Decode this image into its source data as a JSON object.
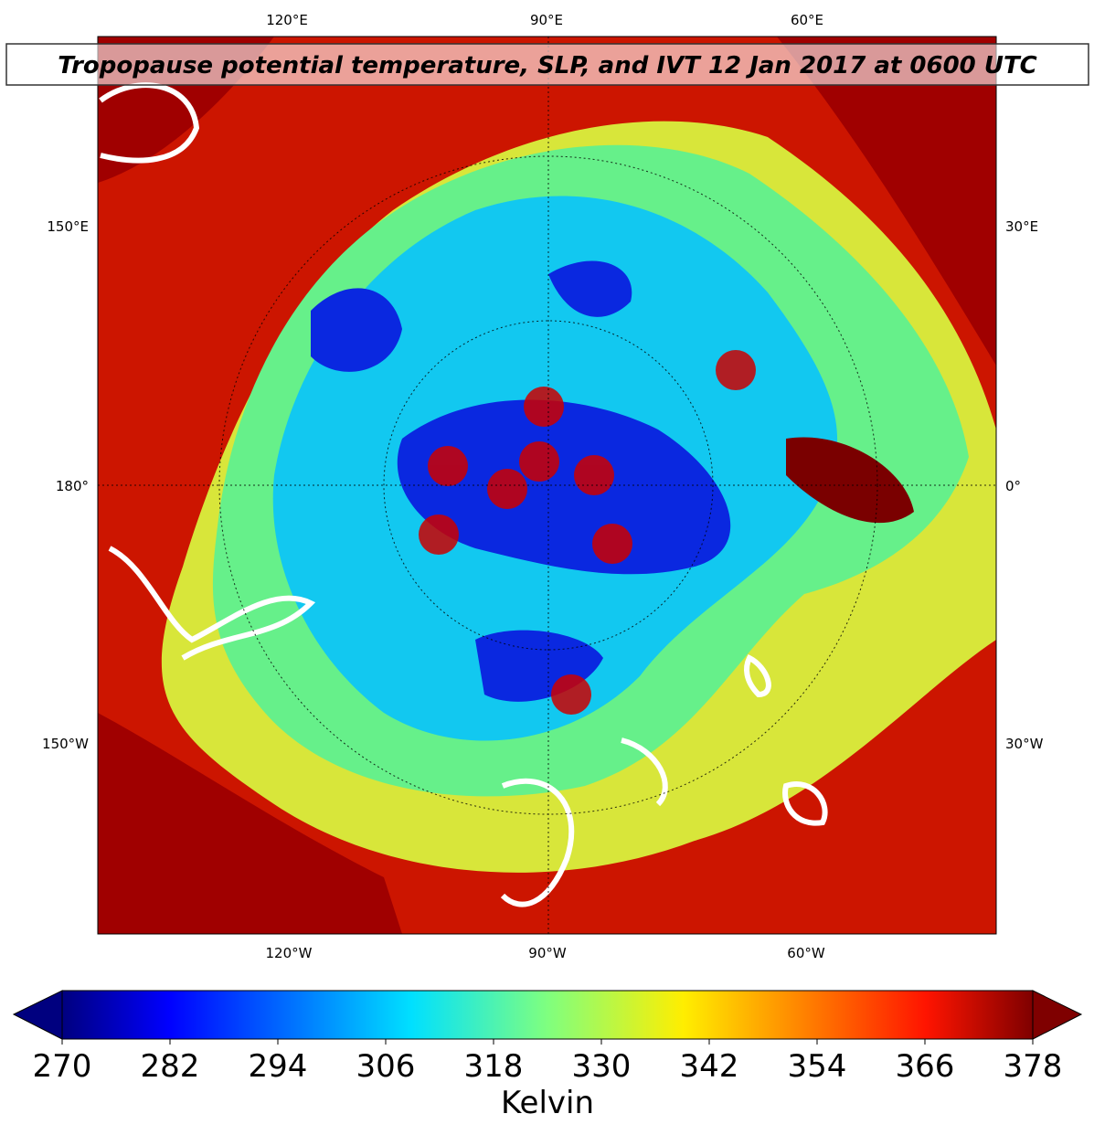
{
  "map": {
    "title": "Tropopause potential temperature, SLP, and IVT 12 Jan 2017 at 0600 UTC",
    "top_labels": [
      "120°E",
      "90°E",
      "60°E"
    ],
    "left_labels": [
      "150°E",
      "180°",
      "150°W"
    ],
    "right_labels": [
      "30°E",
      "0°",
      "30°W"
    ],
    "bottom_labels": [
      "120°W",
      "90°W",
      "60°W"
    ]
  },
  "colorbar": {
    "label": "Kelvin",
    "range": [
      270,
      378
    ],
    "ticks": [
      270,
      282,
      294,
      306,
      318,
      330,
      342,
      354,
      366,
      378
    ]
  }
}
